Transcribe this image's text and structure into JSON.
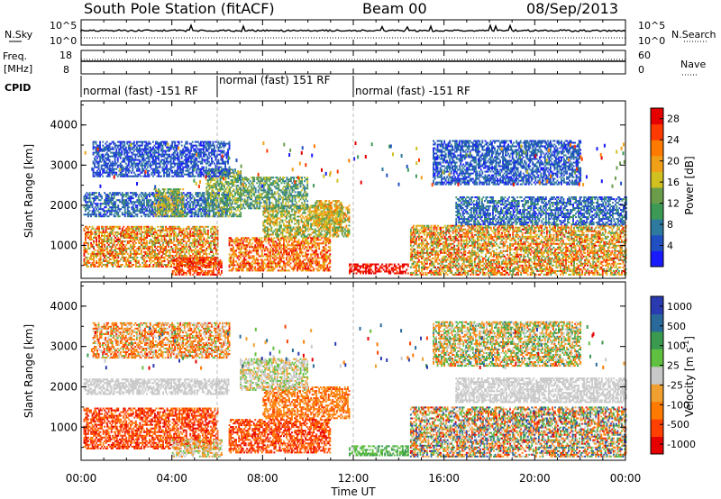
{
  "header": {
    "station": "South Pole Station (fitACF)",
    "beam": "Beam 00",
    "date": "08/Sep/2013"
  },
  "summary": {
    "nsky_label": "N.Sky",
    "nsky_ticks": [
      "10^5",
      "10^0"
    ],
    "nsearch_label": "N.Search",
    "nsearch_ticks": [
      "10^5",
      "10^0"
    ],
    "freq_label_1": "Freq.",
    "freq_label_2": "[MHz]",
    "freq_ticks": [
      "18",
      "8"
    ],
    "nave_label": "Nave",
    "nave_ticks": [
      "60",
      "0"
    ],
    "cpid_label": "CPID",
    "cpid_segments": [
      {
        "text": "normal (fast) -151 RF",
        "start_hour": 0,
        "end_hour": 6
      },
      {
        "text": "normal (fast) 151 RF",
        "start_hour": 6,
        "end_hour": 12
      },
      {
        "text": "normal (fast) -151 RF",
        "start_hour": 12,
        "end_hour": 24
      }
    ]
  },
  "chart_data": [
    {
      "type": "heatmap",
      "name": "power",
      "ylabel": "Slant Range [km]",
      "yticks": [
        "1000",
        "2000",
        "3000",
        "4000"
      ],
      "ylim": [
        180,
        4600
      ],
      "xlim": [
        0,
        24
      ],
      "xticks": [
        "00:00",
        "04:00",
        "08:00",
        "12:00",
        "16:00",
        "20:00",
        "00:00"
      ],
      "colorbar_label": "Power [dB]",
      "colorbar_ticks": [
        "4",
        "8",
        "12",
        "16",
        "20",
        "24",
        "28"
      ],
      "colorbar_range": [
        0,
        30
      ],
      "palette": [
        "#1a1aff",
        "#1f4fc0",
        "#2d7a9e",
        "#3c9a56",
        "#6a9c4a",
        "#d0c020",
        "#f0a018",
        "#ff7a00",
        "#ff3a00",
        "#e60000"
      ],
      "regions": [
        {
          "t": [
            0.1,
            6.5
          ],
          "r": [
            1700,
            2300
          ],
          "level": [
            0.05,
            0.35
          ]
        },
        {
          "t": [
            0.1,
            6.0
          ],
          "r": [
            450,
            1450
          ],
          "level": [
            0.4,
            0.95
          ]
        },
        {
          "t": [
            3.2,
            4.5
          ],
          "r": [
            1700,
            2400
          ],
          "level": [
            0.3,
            0.7
          ]
        },
        {
          "t": [
            4.0,
            6.2
          ],
          "r": [
            250,
            700
          ],
          "level": [
            0.75,
            0.98
          ]
        },
        {
          "t": [
            5.5,
            7.0
          ],
          "r": [
            1700,
            2900
          ],
          "level": [
            0.25,
            0.6
          ]
        },
        {
          "t": [
            6.5,
            11.0
          ],
          "r": [
            350,
            1200
          ],
          "level": [
            0.55,
            0.98
          ]
        },
        {
          "t": [
            8.0,
            11.8
          ],
          "r": [
            1200,
            2000
          ],
          "level": [
            0.3,
            0.75
          ]
        },
        {
          "t": [
            7.0,
            10.0
          ],
          "r": [
            1900,
            2700
          ],
          "level": [
            0.2,
            0.55
          ]
        },
        {
          "t": [
            10.3,
            11.5
          ],
          "r": [
            1500,
            2100
          ],
          "level": [
            0.4,
            0.8
          ]
        },
        {
          "t": [
            11.8,
            14.4
          ],
          "r": [
            280,
            520
          ],
          "level": [
            0.85,
            1.0
          ]
        },
        {
          "t": [
            14.5,
            24.0
          ],
          "r": [
            250,
            1500
          ],
          "level": [
            0.35,
            0.95
          ]
        },
        {
          "t": [
            16.5,
            24.0
          ],
          "r": [
            1500,
            2200
          ],
          "level": [
            0.05,
            0.35
          ]
        },
        {
          "t": [
            0.5,
            6.5
          ],
          "r": [
            2700,
            3600
          ],
          "level": [
            0.05,
            0.25
          ]
        },
        {
          "t": [
            15.5,
            22.0
          ],
          "r": [
            2500,
            3600
          ],
          "level": [
            0.05,
            0.3
          ]
        }
      ]
    },
    {
      "type": "heatmap",
      "name": "velocity",
      "ylabel": "Slant Range [km]",
      "yticks": [
        "1000",
        "2000",
        "3000",
        "4000"
      ],
      "ylim": [
        180,
        4600
      ],
      "xlim": [
        0,
        24
      ],
      "xticks": [
        "00:00",
        "04:00",
        "08:00",
        "12:00",
        "16:00",
        "20:00",
        "00:00"
      ],
      "xlabel": "Time UT",
      "colorbar_label": "Velocity [m s",
      "colorbar_unit_exp": "-1",
      "colorbar_unit_close": "]",
      "colorbar_ticks": [
        "1000",
        "500",
        "100",
        "25",
        "-25",
        "-100",
        "-500",
        "-1000"
      ],
      "colorbar_range": [
        -1200,
        1200
      ],
      "palette": [
        "#e60000",
        "#ff4000",
        "#ff7a00",
        "#f0a030",
        "#c8c8c8",
        "#60c040",
        "#3a9a50",
        "#2a6a9a",
        "#2a3ab0"
      ],
      "regions": [
        {
          "t": [
            0.1,
            6.5
          ],
          "r": [
            1800,
            2200
          ],
          "level": [
            0.45,
            0.55
          ]
        },
        {
          "t": [
            0.1,
            6.0
          ],
          "r": [
            450,
            1450
          ],
          "level": [
            0.05,
            0.3
          ]
        },
        {
          "t": [
            4.0,
            6.2
          ],
          "r": [
            250,
            700
          ],
          "level": [
            0.3,
            0.6
          ]
        },
        {
          "t": [
            6.5,
            11.0
          ],
          "r": [
            350,
            1200
          ],
          "level": [
            0.05,
            0.3
          ]
        },
        {
          "t": [
            8.0,
            11.8
          ],
          "r": [
            1200,
            2000
          ],
          "level": [
            0.15,
            0.4
          ]
        },
        {
          "t": [
            7.0,
            10.0
          ],
          "r": [
            1900,
            2700
          ],
          "level": [
            0.4,
            0.6
          ]
        },
        {
          "t": [
            11.8,
            14.4
          ],
          "r": [
            280,
            520
          ],
          "level": [
            0.55,
            0.75
          ]
        },
        {
          "t": [
            14.5,
            24.0
          ],
          "r": [
            250,
            1500
          ],
          "level": [
            0.05,
            0.95
          ]
        },
        {
          "t": [
            16.5,
            24.0
          ],
          "r": [
            1600,
            2200
          ],
          "level": [
            0.45,
            0.55
          ]
        },
        {
          "t": [
            0.5,
            6.5
          ],
          "r": [
            2700,
            3600
          ],
          "level": [
            0.1,
            0.6
          ]
        },
        {
          "t": [
            15.5,
            22.0
          ],
          "r": [
            2500,
            3600
          ],
          "level": [
            0.2,
            0.8
          ]
        }
      ]
    }
  ]
}
